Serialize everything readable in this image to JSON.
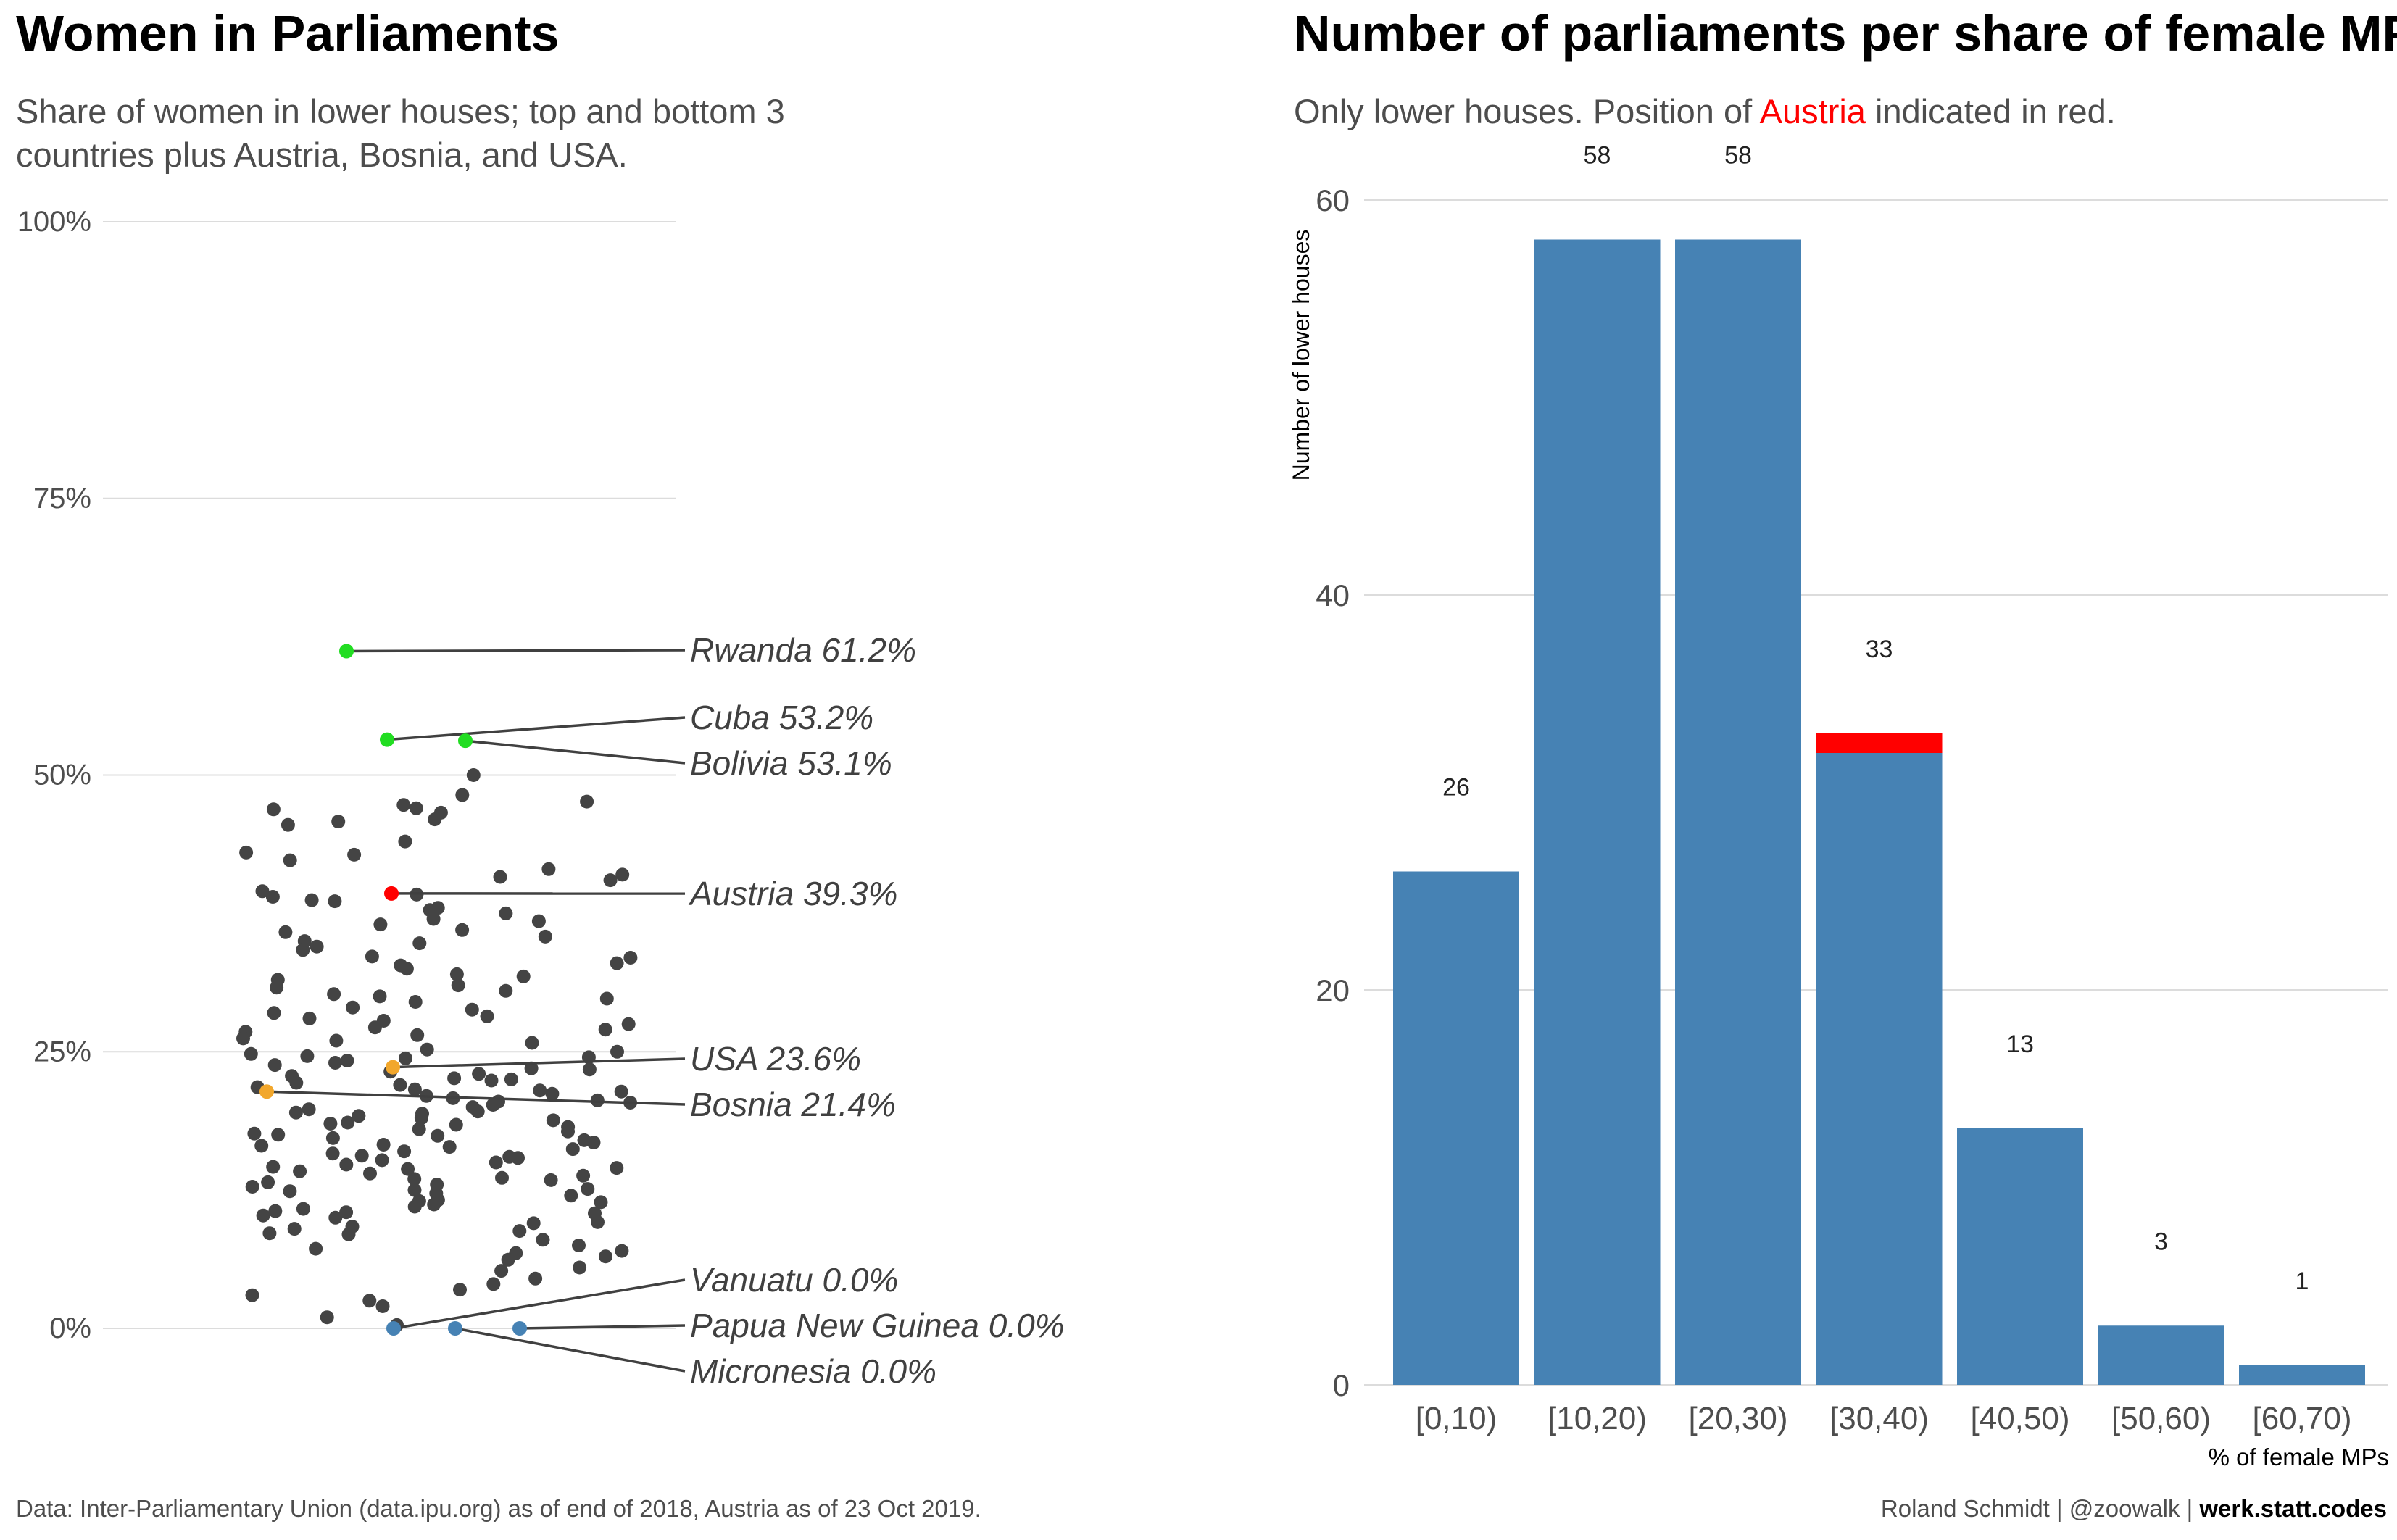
{
  "left": {
    "title": "Women in Parliaments",
    "subtitle_line1": "Share of women in lower houses; top and bottom 3",
    "subtitle_line2": "countries plus Austria, Bosnia, and USA."
  },
  "right": {
    "title": "Number of parliaments per share of female MPs",
    "subtitle_prefix": "Only lower houses. Position of ",
    "subtitle_highlight": "Austria",
    "subtitle_suffix": " indicated in red."
  },
  "footer": {
    "source": "Data: Inter-Parliamentary Union (data.ipu.org) as of end of 2018, Austria as of 23 Oct 2019.",
    "credit": "Roland Schmidt | @zoowalk | ",
    "credit_bold": "werk.statt.codes"
  },
  "colors": {
    "bar": "#4682b4",
    "highlight": "#ff0000",
    "top3": "#22dd22",
    "austria": "#ff0000",
    "usa_bosnia": "#f2a72c",
    "bottom3": "#4682b4",
    "other": "#444444",
    "grid": "#dcdcdc",
    "label": "#404040"
  },
  "chart_data": [
    {
      "type": "scatter",
      "ylabel": "",
      "ylim": [
        0,
        100
      ],
      "yticks": [
        "0%",
        "25%",
        "50%",
        "75%",
        "100%"
      ],
      "ytick_values": [
        0,
        25,
        50,
        75,
        100
      ],
      "grid": true,
      "highlighted": [
        {
          "country": "Rwanda",
          "label": "Rwanda 61.2%",
          "value": 61.2,
          "group": "top3"
        },
        {
          "country": "Cuba",
          "label": "Cuba 53.2%",
          "value": 53.2,
          "group": "top3"
        },
        {
          "country": "Bolivia",
          "label": "Bolivia  53.1%",
          "value": 53.1,
          "group": "top3"
        },
        {
          "country": "Austria",
          "label": "Austria 39.3%",
          "value": 39.3,
          "group": "austria"
        },
        {
          "country": "USA",
          "label": "USA 23.6%",
          "value": 23.6,
          "group": "usa_bosnia"
        },
        {
          "country": "Bosnia",
          "label": "Bosnia 21.4%",
          "value": 21.4,
          "group": "usa_bosnia"
        },
        {
          "country": "Vanuatu",
          "label": "Vanuatu 0.0%",
          "value": 0.0,
          "group": "bottom3"
        },
        {
          "country": "Papua New Guinea",
          "label": "Papua New Guinea 0.0%",
          "value": 0.0,
          "group": "bottom3"
        },
        {
          "country": "Micronesia",
          "label": "Micronesia  0.0%",
          "value": 0.0,
          "group": "bottom3"
        }
      ],
      "other_values": [
        46.0,
        48.2,
        45.5,
        45.8,
        47.0,
        46.6,
        46.9,
        47.6,
        50.0,
        47.3,
        42.8,
        41.5,
        40.8,
        39.0,
        38.0,
        38.6,
        37.5,
        35.0,
        36.0,
        37.0,
        38.7,
        39.5,
        40.5,
        41.0,
        42.3,
        39.2,
        33.0,
        34.5,
        32.5,
        31.0,
        30.5,
        29.0,
        28.0,
        27.5,
        26.5,
        30.2,
        32.0,
        33.6,
        34.2,
        35.4,
        36.5,
        30.0,
        28.5,
        27.0,
        26.0,
        24.5,
        25.2,
        24.0,
        23.0,
        22.0,
        21.5,
        20.5,
        19.5,
        18.5,
        18.0,
        17.5,
        16.5,
        16.0,
        15.5,
        15.0,
        14.5,
        14.0,
        13.5,
        13.0,
        12.5,
        12.0,
        11.5,
        11.0,
        10.5,
        10.0,
        9.5,
        9.0,
        8.5,
        8.0,
        7.5,
        7.0,
        6.5,
        5.5,
        4.5,
        4.0,
        3.5,
        3.0,
        2.5,
        2.0,
        1.0,
        0.3,
        22.5,
        23.5,
        24.2,
        25.0,
        26.8,
        27.8,
        28.8,
        29.5,
        31.5,
        33.5,
        19.0,
        17.0,
        20.0,
        21.0,
        22.8,
        18.8,
        16.8,
        14.8,
        12.8,
        10.8,
        8.8,
        6.8,
        5.2,
        13.8,
        15.8,
        17.8,
        19.8,
        21.8,
        23.8,
        24.8,
        20.8,
        18.2,
        16.2,
        14.2,
        12.2,
        10.2,
        9.2,
        11.2,
        13.2,
        15.2,
        17.2,
        19.2,
        21.2,
        22.2,
        24.6,
        26.2,
        28.2,
        30.8,
        32.8,
        35.8,
        37.8,
        44.0,
        43.0,
        36.8,
        34.8,
        25.8,
        27.2,
        29.8,
        31.8,
        20.2,
        18.6,
        16.6,
        14.6,
        12.6,
        10.6,
        8.6,
        7.2,
        15.6,
        17.6,
        19.6,
        21.6,
        23.2,
        22.6,
        20.6,
        16.4,
        14.4,
        12.4,
        10.4,
        13.6,
        11.6,
        9.6,
        6.2,
        19.4,
        21.4,
        23.4,
        24.4,
        17.4,
        15.4,
        13.4,
        11.4,
        18.4,
        20.4,
        22.4
      ]
    },
    {
      "type": "bar",
      "categories": [
        "[0,10)",
        "[10,20)",
        "[20,30)",
        "[30,40)",
        "[40,50)",
        "[50,60)",
        "[60,70)"
      ],
      "values": [
        26,
        58,
        58,
        33,
        13,
        3,
        1
      ],
      "highlight": {
        "category": "[30,40)",
        "from": 32,
        "to": 33
      },
      "xlabel": "% of female MPs",
      "ylabel": "Number of lower houses",
      "ylim": [
        0,
        68
      ],
      "yticks": [
        0,
        20,
        40,
        60
      ],
      "grid": true
    }
  ]
}
